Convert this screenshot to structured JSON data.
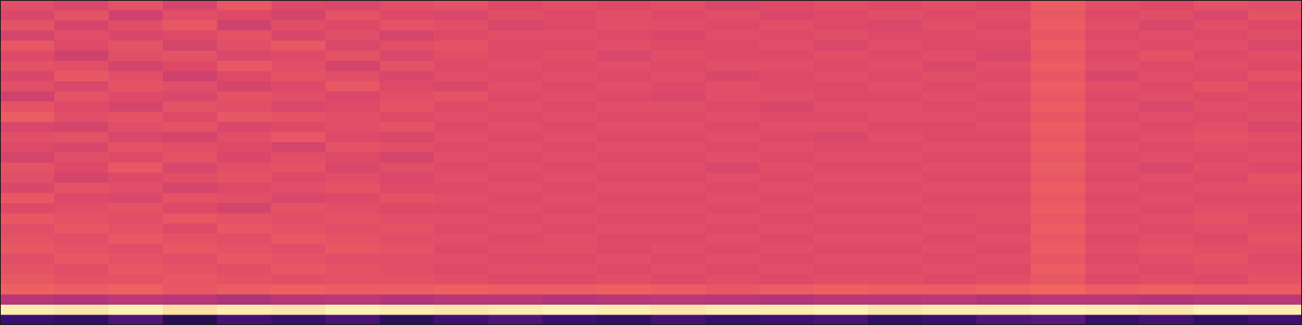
{
  "chart_data": {
    "type": "heatmap",
    "tick_labels": false,
    "xlim": [
      0,
      24
    ],
    "ylim": [
      0,
      32
    ],
    "zlim": [
      -80,
      0
    ],
    "cells": [
      [
        -31,
        -33,
        -30,
        -34,
        -29,
        -32,
        -33,
        -31,
        -30,
        -32,
        -31,
        -32,
        -31,
        -33,
        -32,
        -31,
        -32,
        -31,
        -32,
        -28,
        -31,
        -32,
        -30,
        -31
      ],
      [
        -33,
        -30,
        -35,
        -31,
        -32,
        -34,
        -30,
        -32,
        -33,
        -31,
        -32,
        -31,
        -32,
        -31,
        -33,
        -32,
        -31,
        -32,
        -31,
        -29,
        -32,
        -31,
        -33,
        -30
      ],
      [
        -30,
        -34,
        -31,
        -29,
        -35,
        -31,
        -32,
        -30,
        -31,
        -33,
        -32,
        -31,
        -31,
        -32,
        -31,
        -32,
        -33,
        -31,
        -32,
        -28,
        -31,
        -33,
        -31,
        -32
      ],
      [
        -34,
        -31,
        -33,
        -32,
        -30,
        -33,
        -31,
        -34,
        -32,
        -31,
        -31,
        -32,
        -33,
        -31,
        -32,
        -31,
        -32,
        -32,
        -31,
        -29,
        -32,
        -31,
        -32,
        -31
      ],
      [
        -29,
        -32,
        -30,
        -34,
        -31,
        -29,
        -33,
        -31,
        -30,
        -32,
        -32,
        -31,
        -32,
        -32,
        -31,
        -33,
        -31,
        -32,
        -32,
        -28,
        -31,
        -32,
        -31,
        -33
      ],
      [
        -32,
        -35,
        -31,
        -30,
        -33,
        -32,
        -30,
        -33,
        -31,
        -32,
        -31,
        -33,
        -31,
        -32,
        -32,
        -31,
        -32,
        -31,
        -33,
        -29,
        -32,
        -30,
        -32,
        -31
      ],
      [
        -30,
        -31,
        -34,
        -32,
        -29,
        -31,
        -34,
        -30,
        -32,
        -31,
        -32,
        -31,
        -32,
        -31,
        -31,
        -32,
        -31,
        -33,
        -31,
        -28,
        -31,
        -32,
        -31,
        -32
      ],
      [
        -33,
        -29,
        -31,
        -35,
        -32,
        -30,
        -31,
        -33,
        -31,
        -32,
        -31,
        -32,
        -31,
        -33,
        -32,
        -31,
        -32,
        -31,
        -32,
        -29,
        -33,
        -31,
        -32,
        -30
      ],
      [
        -31,
        -33,
        -30,
        -31,
        -34,
        -32,
        -29,
        -32,
        -33,
        -31,
        -32,
        -31,
        -32,
        -31,
        -32,
        -32,
        -31,
        -32,
        -31,
        -28,
        -31,
        -32,
        -30,
        -32
      ],
      [
        -35,
        -30,
        -32,
        -33,
        -30,
        -31,
        -33,
        -31,
        -30,
        -32,
        -31,
        -32,
        -33,
        -31,
        -31,
        -32,
        -32,
        -31,
        -32,
        -29,
        -32,
        -31,
        -32,
        -31
      ],
      [
        -30,
        -32,
        -34,
        -30,
        -31,
        -33,
        -32,
        -30,
        -32,
        -31,
        -32,
        -31,
        -31,
        -32,
        -33,
        -31,
        -31,
        -32,
        -31,
        -28,
        -31,
        -33,
        -31,
        -32
      ],
      [
        -28,
        -31,
        -30,
        -32,
        -29,
        -30,
        -31,
        -32,
        -31,
        -32,
        -31,
        -32,
        -32,
        -31,
        -32,
        -32,
        -31,
        -31,
        -32,
        -29,
        -32,
        -31,
        -32,
        -31
      ],
      [
        -33,
        -34,
        -31,
        -30,
        -33,
        -32,
        -31,
        -30,
        -32,
        -31,
        -32,
        -31,
        -31,
        -32,
        -31,
        -31,
        -32,
        -32,
        -31,
        -28,
        -31,
        -32,
        -31,
        -33
      ],
      [
        -31,
        -30,
        -33,
        -34,
        -31,
        -29,
        -32,
        -33,
        -31,
        -32,
        -31,
        -32,
        -32,
        -31,
        -32,
        -33,
        -31,
        -32,
        -32,
        -29,
        -32,
        -31,
        -30,
        -31
      ],
      [
        -32,
        -33,
        -30,
        -31,
        -32,
        -34,
        -30,
        -31,
        -32,
        -31,
        -32,
        -31,
        -31,
        -32,
        -31,
        -32,
        -32,
        -31,
        -31,
        -28,
        -31,
        -32,
        -31,
        -32
      ],
      [
        -34,
        -31,
        -32,
        -30,
        -33,
        -31,
        -32,
        -34,
        -31,
        -32,
        -31,
        -32,
        -32,
        -31,
        -32,
        -31,
        -31,
        -32,
        -32,
        -29,
        -32,
        -31,
        -32,
        -31
      ],
      [
        -30,
        -32,
        -29,
        -33,
        -31,
        -30,
        -33,
        -31,
        -32,
        -31,
        -32,
        -31,
        -31,
        -33,
        -31,
        -32,
        -32,
        -31,
        -31,
        -28,
        -31,
        -33,
        -31,
        -32
      ],
      [
        -31,
        -34,
        -32,
        -31,
        -30,
        -32,
        -31,
        -33,
        -31,
        -32,
        -31,
        -32,
        -32,
        -31,
        -32,
        -31,
        -31,
        -32,
        -32,
        -29,
        -32,
        -31,
        -32,
        -30
      ],
      [
        -33,
        -30,
        -31,
        -34,
        -32,
        -31,
        -30,
        -32,
        -32,
        -31,
        -32,
        -31,
        -31,
        -32,
        -31,
        -32,
        -32,
        -31,
        -31,
        -28,
        -31,
        -32,
        -31,
        -31
      ],
      [
        -29,
        -32,
        -33,
        -30,
        -31,
        -33,
        -32,
        -30,
        -31,
        -32,
        -31,
        -32,
        -32,
        -31,
        -32,
        -31,
        -31,
        -32,
        -32,
        -29,
        -32,
        -31,
        -32,
        -32
      ],
      [
        -32,
        -31,
        -30,
        -32,
        -34,
        -30,
        -31,
        -32,
        -32,
        -31,
        -32,
        -31,
        -31,
        -32,
        -31,
        -32,
        -32,
        -31,
        -31,
        -28,
        -31,
        -32,
        -31,
        -31
      ],
      [
        -29,
        -30,
        -31,
        -29,
        -30,
        -31,
        -30,
        -31,
        -31,
        -32,
        -31,
        -32,
        -32,
        -31,
        -32,
        -31,
        -31,
        -32,
        -31,
        -29,
        -32,
        -31,
        -30,
        -32
      ],
      [
        -31,
        -29,
        -30,
        -32,
        -29,
        -30,
        -31,
        -30,
        -32,
        -31,
        -32,
        -31,
        -31,
        -32,
        -31,
        -32,
        -32,
        -31,
        -32,
        -28,
        -31,
        -32,
        -31,
        -31
      ],
      [
        -30,
        -31,
        -29,
        -30,
        -31,
        -29,
        -30,
        -31,
        -31,
        -32,
        -31,
        -32,
        -32,
        -31,
        -32,
        -31,
        -31,
        -32,
        -31,
        -29,
        -32,
        -31,
        -32,
        -30
      ],
      [
        -29,
        -30,
        -31,
        -29,
        -30,
        -31,
        -29,
        -30,
        -32,
        -31,
        -31,
        -32,
        -31,
        -32,
        -31,
        -32,
        -32,
        -31,
        -32,
        -28,
        -31,
        -30,
        -31,
        -31
      ],
      [
        -31,
        -29,
        -30,
        -31,
        -29,
        -30,
        -31,
        -31,
        -31,
        -32,
        -32,
        -31,
        -32,
        -31,
        -32,
        -31,
        -31,
        -32,
        -31,
        -29,
        -32,
        -31,
        -30,
        -32
      ],
      [
        -30,
        -31,
        -29,
        -30,
        -31,
        -29,
        -30,
        -31,
        -32,
        -31,
        -31,
        -32,
        -31,
        -32,
        -31,
        -32,
        -32,
        -31,
        -32,
        -28,
        -31,
        -32,
        -31,
        -31
      ],
      [
        -29,
        -30,
        -30,
        -29,
        -30,
        -31,
        -30,
        -30,
        -31,
        -32,
        -32,
        -31,
        -32,
        -31,
        -32,
        -31,
        -31,
        -32,
        -31,
        -29,
        -32,
        -31,
        -32,
        -30
      ],
      [
        -27,
        -28,
        -27,
        -29,
        -28,
        -27,
        -28,
        -28,
        -27,
        -28,
        -28,
        -27,
        -28,
        -29,
        -28,
        -27,
        -28,
        -28,
        -27,
        -26,
        -28,
        -27,
        -28,
        -28
      ],
      [
        -40,
        -41,
        -39,
        -40,
        -42,
        -40,
        -39,
        -41,
        -40,
        -40,
        -41,
        -40,
        -39,
        -40,
        -41,
        -40,
        -40,
        -39,
        -41,
        -40,
        -40,
        -41,
        -40,
        -39
      ],
      [
        -3,
        -4,
        -2,
        -5,
        -3,
        -4,
        -2,
        -3,
        -4,
        -3,
        -2,
        -3,
        -4,
        -3,
        -3,
        -2,
        -4,
        -3,
        -3,
        -2,
        -3,
        -4,
        -2,
        -3
      ],
      [
        -64,
        -66,
        -60,
        -68,
        -62,
        -65,
        -61,
        -67,
        -63,
        -60,
        -64,
        -66,
        -62,
        -65,
        -63,
        -61,
        -66,
        -64,
        -60,
        -58,
        -65,
        -62,
        -66,
        -63
      ]
    ]
  }
}
